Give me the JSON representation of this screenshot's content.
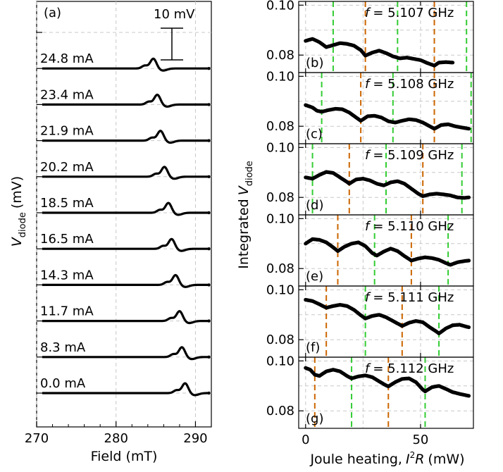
{
  "chart_data": [
    {
      "type": "line",
      "panel": "(a)",
      "xlabel": "Field (mT)",
      "ylabel_main": "V",
      "ylabel_sub": "diode",
      "ylabel_unit": "(mV)",
      "xlim": [
        270,
        292
      ],
      "xticks": [
        270,
        280,
        290
      ],
      "scale_bar": "10 mV",
      "series": [
        {
          "name": "0.0 mA",
          "resonance_mT": 288.7
        },
        {
          "name": "8.3 mA",
          "resonance_mT": 288.3
        },
        {
          "name": "11.7 mA",
          "resonance_mT": 288.0
        },
        {
          "name": "14.3 mA",
          "resonance_mT": 287.5
        },
        {
          "name": "16.5 mA",
          "resonance_mT": 287.0
        },
        {
          "name": "18.5 mA",
          "resonance_mT": 286.6
        },
        {
          "name": "20.2 mA",
          "resonance_mT": 286.1
        },
        {
          "name": "21.9 mA",
          "resonance_mT": 285.6
        },
        {
          "name": "23.4 mA",
          "resonance_mT": 285.2
        },
        {
          "name": "24.8 mA",
          "resonance_mT": 284.7
        }
      ]
    },
    {
      "type": "scatter",
      "xlabel_main": "Joule heating,",
      "xlabel_expr": "I",
      "xlabel_sup": "2",
      "xlabel_R": "R",
      "xlabel_unit": "(mW)",
      "ylabel_main": "Integrated",
      "ylabel_v": "V",
      "ylabel_sub": "diode",
      "xlim": [
        -3,
        73
      ],
      "xticks": [
        0,
        50
      ],
      "yticks": [
        0.08,
        0.1
      ],
      "ylim": [
        0.073,
        0.1015
      ],
      "f_symbol": "f",
      "panels": [
        {
          "label": "(b)",
          "freq": "= 5.107 GHz",
          "x_end": 57,
          "green": [
            12,
            40,
            70
          ],
          "orange": [
            26,
            56
          ],
          "points": [
            [
              0,
              0.0857
            ],
            [
              3,
              0.0865
            ],
            [
              6,
              0.0852
            ],
            [
              9,
              0.0832
            ],
            [
              12,
              0.084
            ],
            [
              15,
              0.0848
            ],
            [
              18,
              0.0845
            ],
            [
              21,
              0.0838
            ],
            [
              24,
              0.082
            ],
            [
              26,
              0.0798
            ],
            [
              29,
              0.081
            ],
            [
              32,
              0.0818
            ],
            [
              35,
              0.0808
            ],
            [
              38,
              0.0795
            ],
            [
              41,
              0.0787
            ],
            [
              44,
              0.079
            ],
            [
              47,
              0.0785
            ],
            [
              50,
              0.078
            ],
            [
              53,
              0.0768
            ],
            [
              56,
              0.0758
            ],
            [
              58,
              0.077
            ],
            [
              61,
              0.0772
            ],
            [
              64,
              0.077
            ]
          ]
        },
        {
          "label": "(c)",
          "freq": "= 5.108 GHz",
          "x_end": 71,
          "green": [
            7,
            38,
            72
          ],
          "orange": [
            24,
            56
          ],
          "points": [
            [
              0,
              0.0885
            ],
            [
              3,
              0.0875
            ],
            [
              5,
              0.0862
            ],
            [
              7,
              0.0858
            ],
            [
              10,
              0.0865
            ],
            [
              13,
              0.087
            ],
            [
              16,
              0.0868
            ],
            [
              19,
              0.0855
            ],
            [
              22,
              0.0835
            ],
            [
              24,
              0.0822
            ],
            [
              27,
              0.084
            ],
            [
              30,
              0.0842
            ],
            [
              33,
              0.0835
            ],
            [
              36,
              0.082
            ],
            [
              39,
              0.0815
            ],
            [
              42,
              0.0822
            ],
            [
              45,
              0.0828
            ],
            [
              48,
              0.0825
            ],
            [
              51,
              0.0815
            ],
            [
              54,
              0.08
            ],
            [
              56,
              0.079
            ],
            [
              59,
              0.0805
            ],
            [
              62,
              0.0808
            ],
            [
              65,
              0.08
            ],
            [
              68,
              0.0795
            ],
            [
              71,
              0.079
            ]
          ]
        },
        {
          "label": "(d)",
          "freq": "= 5.109 GHz",
          "x_end": 71,
          "green": [
            3,
            35,
            68
          ],
          "orange": [
            19,
            51
          ],
          "points": [
            [
              0,
              0.088
            ],
            [
              3,
              0.0875
            ],
            [
              6,
              0.089
            ],
            [
              9,
              0.0902
            ],
            [
              12,
              0.0898
            ],
            [
              15,
              0.088
            ],
            [
              18,
              0.0862
            ],
            [
              19,
              0.0855
            ],
            [
              22,
              0.0872
            ],
            [
              25,
              0.0875
            ],
            [
              28,
              0.0868
            ],
            [
              31,
              0.0855
            ],
            [
              34,
              0.0848
            ],
            [
              37,
              0.086
            ],
            [
              40,
              0.0865
            ],
            [
              43,
              0.0855
            ],
            [
              46,
              0.0835
            ],
            [
              49,
              0.0815
            ],
            [
              51,
              0.0805
            ],
            [
              54,
              0.0812
            ],
            [
              57,
              0.0815
            ],
            [
              60,
              0.0812
            ],
            [
              63,
              0.0808
            ],
            [
              66,
              0.08
            ],
            [
              69,
              0.0798
            ],
            [
              71,
              0.08
            ]
          ]
        },
        {
          "label": "(e)",
          "freq": "= 5.110 GHz",
          "x_end": 71,
          "green": [
            30,
            62
          ],
          "orange": [
            14,
            46
          ],
          "points": [
            [
              0,
              0.09
            ],
            [
              3,
              0.0918
            ],
            [
              6,
              0.0915
            ],
            [
              9,
              0.0905
            ],
            [
              12,
              0.0885
            ],
            [
              14,
              0.087
            ],
            [
              17,
              0.0888
            ],
            [
              20,
              0.09
            ],
            [
              23,
              0.0905
            ],
            [
              26,
              0.089
            ],
            [
              29,
              0.0862
            ],
            [
              31,
              0.0852
            ],
            [
              34,
              0.0868
            ],
            [
              37,
              0.088
            ],
            [
              40,
              0.087
            ],
            [
              43,
              0.085
            ],
            [
              46,
              0.0832
            ],
            [
              49,
              0.084
            ],
            [
              52,
              0.0845
            ],
            [
              55,
              0.0842
            ],
            [
              58,
              0.0835
            ],
            [
              61,
              0.0822
            ],
            [
              63,
              0.0815
            ],
            [
              66,
              0.0825
            ],
            [
              69,
              0.083
            ],
            [
              71,
              0.0832
            ]
          ]
        },
        {
          "label": "(f)",
          "freq": "= 5.111 GHz",
          "x_end": 71,
          "green": [
            26,
            58
          ],
          "orange": [
            9,
            42
          ],
          "points": [
            [
              0,
              0.096
            ],
            [
              3,
              0.0955
            ],
            [
              6,
              0.0942
            ],
            [
              9,
              0.0928
            ],
            [
              12,
              0.0935
            ],
            [
              15,
              0.094
            ],
            [
              18,
              0.0935
            ],
            [
              21,
              0.092
            ],
            [
              24,
              0.0898
            ],
            [
              26,
              0.0885
            ],
            [
              29,
              0.0895
            ],
            [
              32,
              0.09
            ],
            [
              35,
              0.089
            ],
            [
              38,
              0.0875
            ],
            [
              41,
              0.086
            ],
            [
              42,
              0.0855
            ],
            [
              45,
              0.0868
            ],
            [
              48,
              0.0875
            ],
            [
              51,
              0.087
            ],
            [
              54,
              0.085
            ],
            [
              57,
              0.0832
            ],
            [
              58,
              0.0825
            ],
            [
              61,
              0.0845
            ],
            [
              64,
              0.0858
            ],
            [
              67,
              0.086
            ],
            [
              70,
              0.0852
            ],
            [
              71,
              0.085
            ]
          ]
        },
        {
          "label": "(g)",
          "freq": "= 5.112 GHz",
          "x_end": 71,
          "green": [
            20,
            52
          ],
          "orange": [
            4,
            36
          ],
          "points": [
            [
              0,
              0.0972
            ],
            [
              2,
              0.0965
            ],
            [
              4,
              0.0945
            ],
            [
              6,
              0.094
            ],
            [
              9,
              0.0958
            ],
            [
              12,
              0.0965
            ],
            [
              15,
              0.0958
            ],
            [
              18,
              0.094
            ],
            [
              20,
              0.093
            ],
            [
              23,
              0.0938
            ],
            [
              26,
              0.0942
            ],
            [
              29,
              0.0935
            ],
            [
              32,
              0.0918
            ],
            [
              35,
              0.0902
            ],
            [
              36,
              0.0898
            ],
            [
              39,
              0.0915
            ],
            [
              42,
              0.0928
            ],
            [
              45,
              0.093
            ],
            [
              48,
              0.0915
            ],
            [
              51,
              0.0885
            ],
            [
              52,
              0.0878
            ],
            [
              55,
              0.0895
            ],
            [
              58,
              0.09
            ],
            [
              61,
              0.0888
            ],
            [
              64,
              0.0875
            ],
            [
              67,
              0.0868
            ],
            [
              70,
              0.0862
            ],
            [
              71,
              0.086
            ]
          ]
        }
      ]
    }
  ],
  "colors": {
    "green": "#33cc33",
    "orange": "#cc6600",
    "grid": "#c8c8c8",
    "trace": "#000000"
  }
}
